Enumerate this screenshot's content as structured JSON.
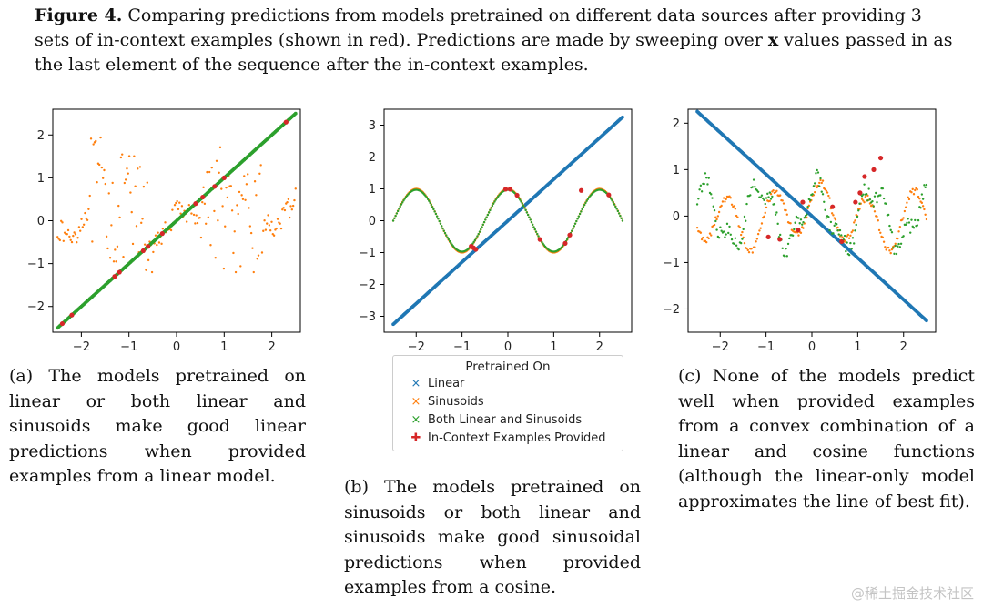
{
  "caption": {
    "label": "Figure 4.",
    "part1": " Comparing predictions from models pretrained on different data sources after providing 3 sets of in-context examples (shown in red). Predictions are made by sweeping over ",
    "bold_x": "x",
    "part2": " values passed in as the last element of the sequence after the in-context examples."
  },
  "colors": {
    "linear": "#1f77b4",
    "sinusoids": "#ff7f0e",
    "both": "#2ca02c",
    "examples": "#d62728"
  },
  "legend": {
    "title": "Pretrained On",
    "entries": [
      "Linear",
      "Sinusoids",
      "Both Linear and Sinusoids",
      "In-Context Examples Provided"
    ]
  },
  "subcaptions": {
    "a": "(a) The models pretrained on linear or both linear and sinusoids make good linear predictions when provided examples from a linear model.",
    "b": "(b) The models pretrained on sinusoids or both linear and sinusoids make good sinusoidal predictions when provided examples from a cosine.",
    "c": "(c) None of the models predict well when provided examples from a convex combination of a linear and cosine functions (although the linear-only model approximates the line of best fit)."
  },
  "watermark": "@稀土掘金技术社区",
  "chart_data": [
    {
      "type": "scatter",
      "xlim": [
        -2.6,
        2.6
      ],
      "ylim": [
        -2.6,
        2.6
      ],
      "xticks": [
        -2,
        -1,
        0,
        1,
        2
      ],
      "yticks": [
        -2,
        -1,
        0,
        1,
        2
      ],
      "series": [
        {
          "name": "Linear",
          "function": "y = x",
          "x_range": [
            -2.5,
            2.5
          ]
        },
        {
          "name": "Sinusoids",
          "function": "erratic, y within [-1.2, 2.3]",
          "x_range": [
            -2.5,
            2.5
          ]
        },
        {
          "name": "Both Linear and Sinusoids",
          "function": "y = x",
          "x_range": [
            -2.5,
            2.5
          ]
        },
        {
          "name": "In-Context Examples Provided",
          "x": [
            -2.4,
            -2.2,
            -1.3,
            -1.2,
            -0.7,
            -0.6,
            -0.3,
            0.4,
            0.55,
            0.8,
            1.0,
            2.3
          ],
          "y": [
            -2.4,
            -2.2,
            -1.3,
            -1.2,
            -0.7,
            -0.6,
            -0.3,
            0.4,
            0.55,
            0.8,
            1.0,
            2.3
          ]
        }
      ]
    },
    {
      "type": "scatter",
      "xlim": [
        -2.7,
        2.7
      ],
      "ylim": [
        -3.5,
        3.5
      ],
      "xticks": [
        -2,
        -1,
        0,
        1,
        2
      ],
      "yticks": [
        -3,
        -2,
        -1,
        0,
        1,
        2,
        3
      ],
      "series": [
        {
          "name": "Linear",
          "function": "y = 1.3x",
          "x_range": [
            -2.5,
            2.5
          ]
        },
        {
          "name": "Sinusoids",
          "function": "y = cos(pi x)",
          "x_range": [
            -2.5,
            2.5
          ]
        },
        {
          "name": "Both Linear and Sinusoids",
          "function": "y = cos(pi x)",
          "x_range": [
            -2.5,
            2.5
          ]
        },
        {
          "name": "In-Context Examples Provided",
          "x": [
            -0.8,
            -0.75,
            -0.7,
            -0.05,
            0.05,
            0.2,
            0.7,
            1.25,
            1.35,
            1.6,
            2.2
          ],
          "y": [
            -0.8,
            -0.85,
            -0.9,
            0.99,
            0.99,
            0.8,
            -0.59,
            -0.71,
            -0.45,
            0.95,
            0.81
          ]
        }
      ]
    },
    {
      "type": "scatter",
      "xlim": [
        -2.7,
        2.7
      ],
      "ylim": [
        -2.5,
        2.3
      ],
      "xticks": [
        -2,
        -1,
        0,
        1,
        2
      ],
      "yticks": [
        -2,
        -1,
        0,
        1,
        2
      ],
      "series": [
        {
          "name": "Linear",
          "function": "y = -0.9x",
          "x_range": [
            -2.5,
            2.5
          ]
        },
        {
          "name": "Sinusoids",
          "function": "erratic oscillation, y within [-0.8, 0.9]",
          "x_range": [
            -2.5,
            2.5
          ]
        },
        {
          "name": "Both Linear and Sinusoids",
          "function": "erratic oscillation, y within [-1.0, 0.9]",
          "x_range": [
            -2.5,
            2.5
          ]
        },
        {
          "name": "In-Context Examples Provided",
          "x": [
            -0.95,
            -0.7,
            -0.3,
            -0.2,
            0.45,
            0.65,
            0.95,
            1.05,
            1.15,
            1.35,
            1.5
          ],
          "y": [
            -0.45,
            -0.5,
            -0.3,
            0.3,
            0.2,
            -0.55,
            0.3,
            0.5,
            0.85,
            1.0,
            1.25
          ]
        }
      ]
    }
  ]
}
